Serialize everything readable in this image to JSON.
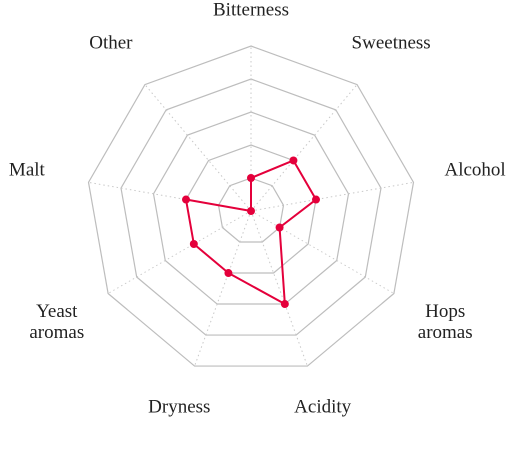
{
  "chart_data": {
    "type": "radar",
    "categories": [
      "Bitterness",
      "Sweetness",
      "Alcohol",
      "Hops\naromas",
      "Acidity",
      "Dryness",
      "Yeast\naromas",
      "Malt",
      "Other"
    ],
    "values": [
      1,
      2,
      2,
      1,
      3,
      2,
      2,
      2,
      0
    ],
    "color": "#e4003b",
    "rlim": [
      0,
      5
    ],
    "rticks": [
      1,
      2,
      3,
      4,
      5
    ],
    "grid": true
  }
}
